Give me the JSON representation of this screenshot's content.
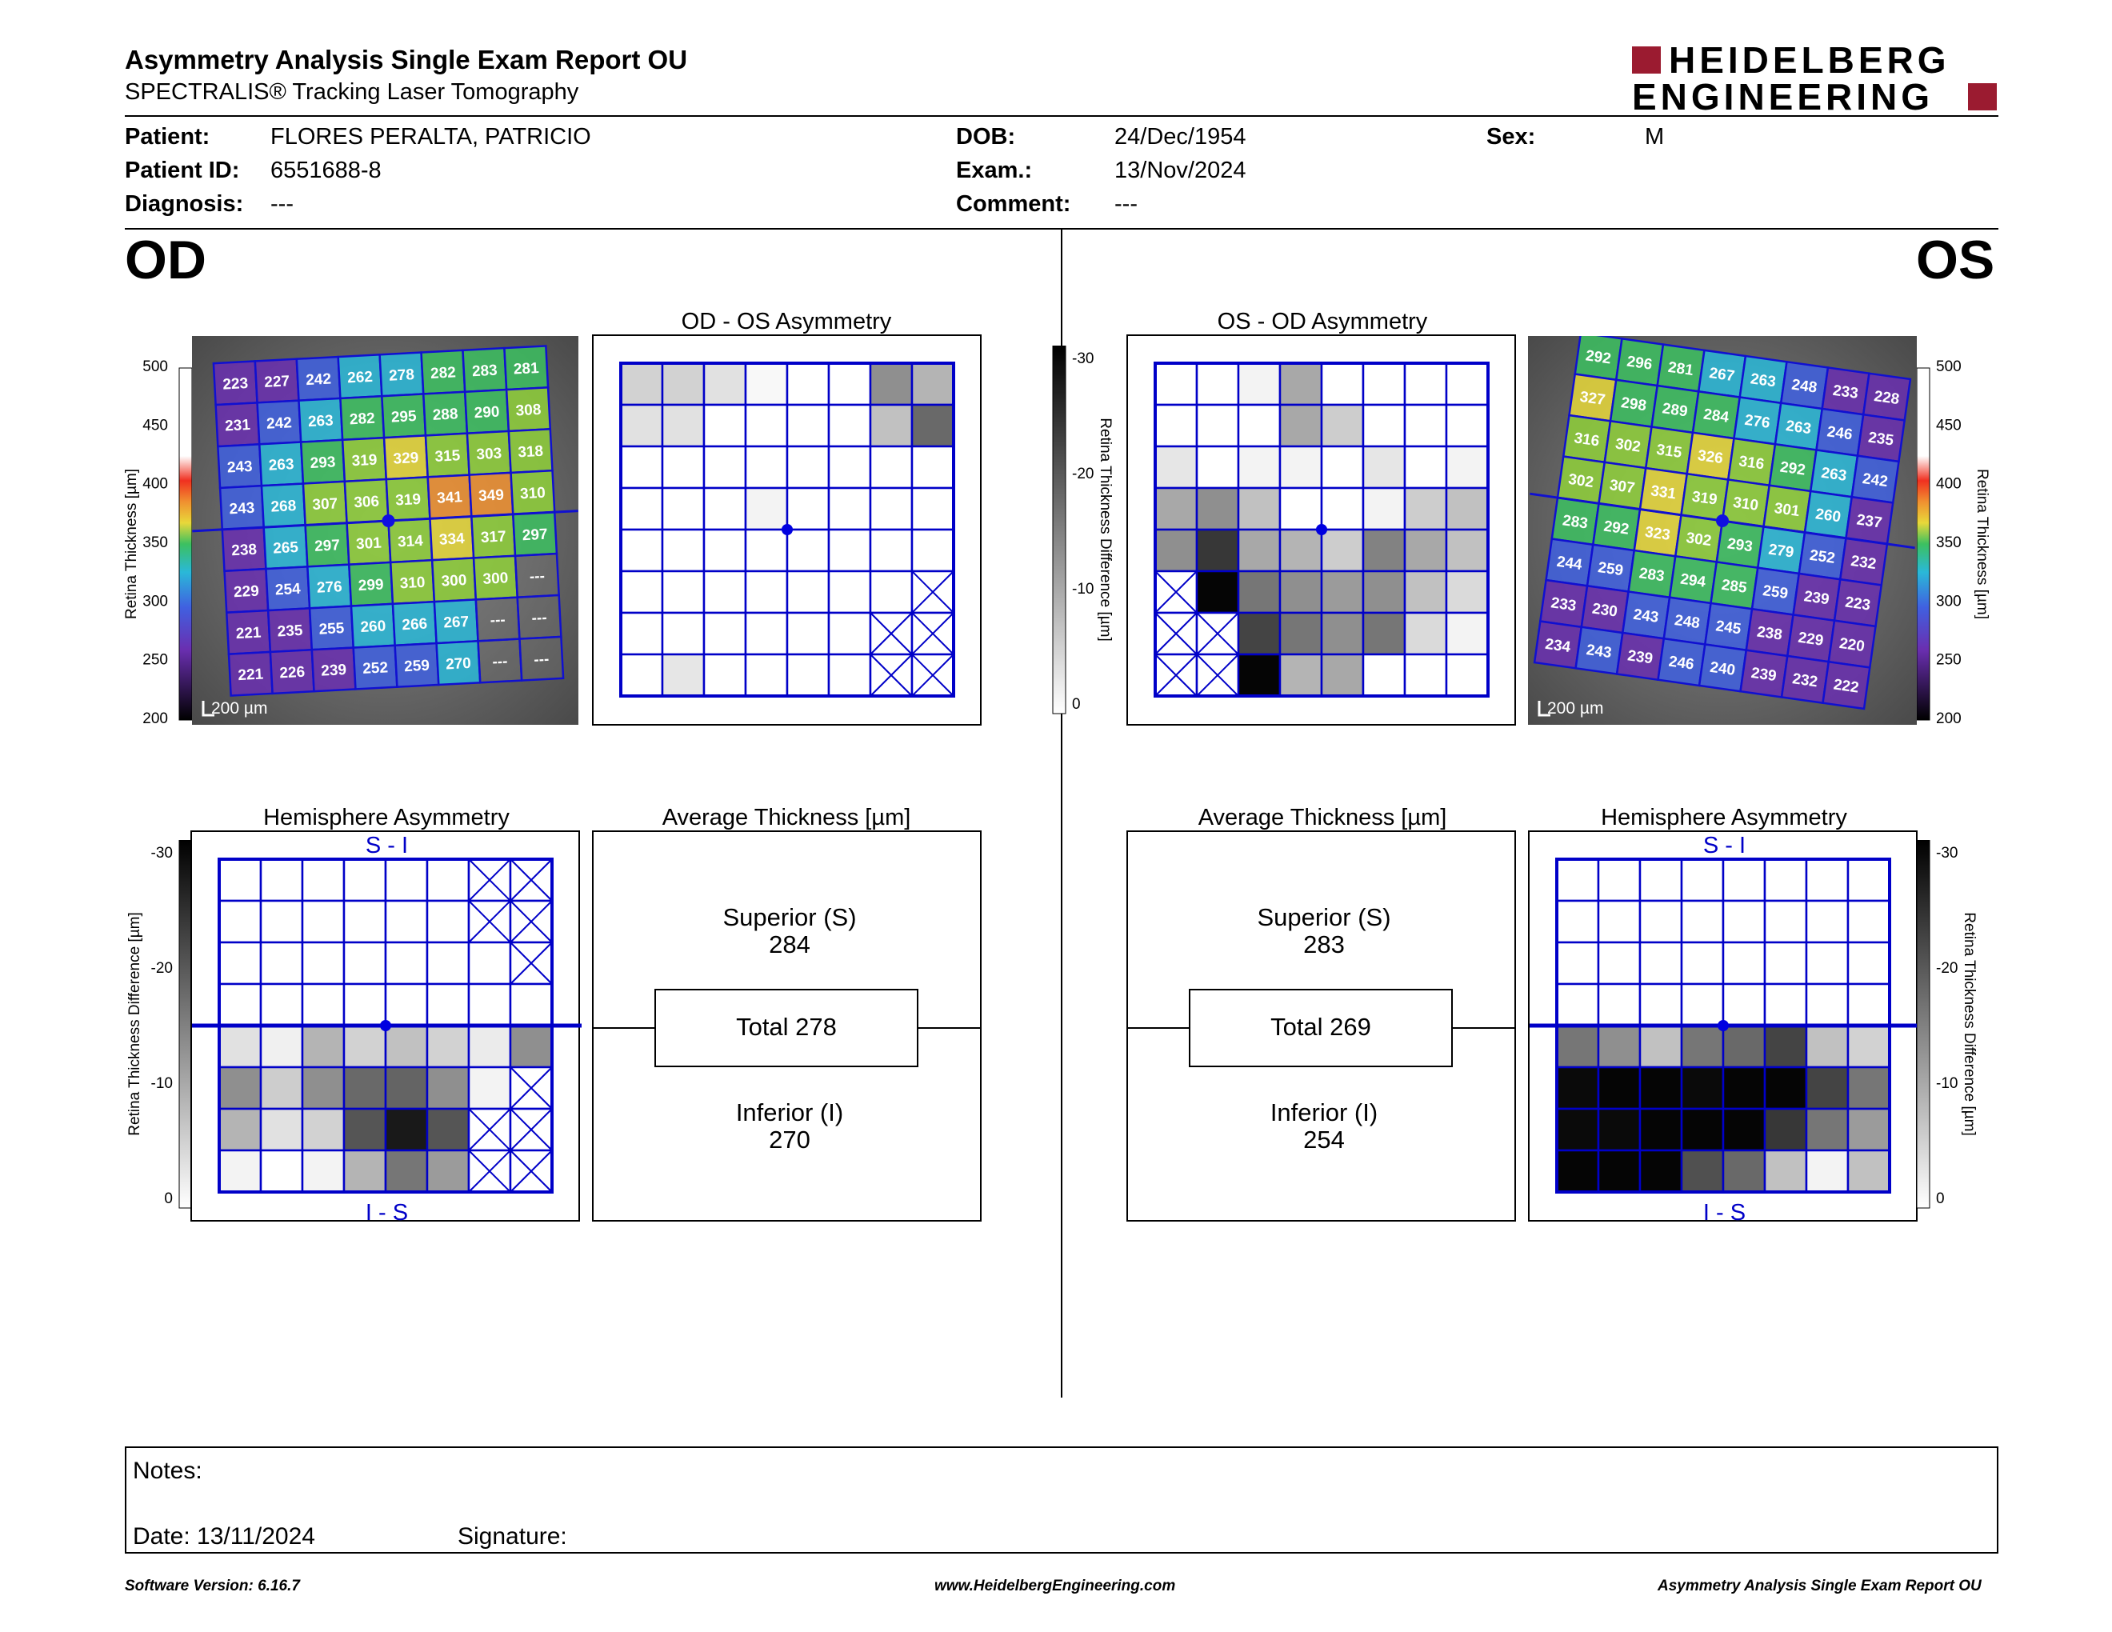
{
  "header": {
    "title": "Asymmetry Analysis Single Exam Report OU",
    "subtitle": "SPECTRALIS® Tracking Laser Tomography",
    "logo_line1": "HEIDELBERG",
    "logo_line2": "ENGINEERING",
    "brand_color": "#9b1b30"
  },
  "patient": {
    "patient_label": "Patient:",
    "patient_value": "FLORES PERALTA, PATRICIO",
    "id_label": "Patient ID:",
    "id_value": "6551688-8",
    "diagnosis_label": "Diagnosis:",
    "diagnosis_value": "---",
    "dob_label": "DOB:",
    "dob_value": "24/Dec/1954",
    "exam_label": "Exam.:",
    "exam_value": "13/Nov/2024",
    "comment_label": "Comment:",
    "comment_value": "---",
    "sex_label": "Sex:",
    "sex_value": "M"
  },
  "od": {
    "eye_label": "OD",
    "asym_title": "OD - OS Asymmetry",
    "hemi_title": "Hemisphere Asymmetry",
    "avg_title": "Average Thickness [µm]",
    "hemi_top": "S - I",
    "hemi_bottom": "I - S",
    "superior_label": "Superior (S)",
    "superior_value": "284",
    "total_label": "Total 278",
    "inferior_label": "Inferior (I)",
    "inferior_value": "270",
    "scale_bar": "200 µm",
    "thickness_grid": [
      [
        "223",
        "227",
        "242",
        "262",
        "278",
        "282",
        "283",
        "281"
      ],
      [
        "231",
        "242",
        "263",
        "282",
        "295",
        "288",
        "290",
        "308"
      ],
      [
        "243",
        "263",
        "293",
        "319",
        "329",
        "315",
        "303",
        "318"
      ],
      [
        "243",
        "268",
        "307",
        "306",
        "319",
        "341",
        "349",
        "310"
      ],
      [
        "238",
        "265",
        "297",
        "301",
        "314",
        "334",
        "317",
        "297"
      ],
      [
        "229",
        "254",
        "276",
        "299",
        "310",
        "300",
        "300",
        "---"
      ],
      [
        "221",
        "235",
        "255",
        "260",
        "266",
        "267",
        "---",
        "---"
      ],
      [
        "221",
        "226",
        "239",
        "252",
        "259",
        "270",
        "---",
        "---"
      ]
    ],
    "asym_grid": [
      [
        18,
        18,
        12,
        3,
        0,
        0,
        45,
        30
      ],
      [
        12,
        12,
        0,
        0,
        0,
        0,
        25,
        60
      ],
      [
        0,
        0,
        0,
        0,
        0,
        0,
        0,
        0
      ],
      [
        0,
        0,
        0,
        5,
        0,
        0,
        0,
        0
      ],
      [
        0,
        0,
        0,
        0,
        0,
        0,
        0,
        0
      ],
      [
        0,
        0,
        0,
        0,
        0,
        0,
        0,
        -1
      ],
      [
        0,
        0,
        0,
        0,
        0,
        0,
        -1,
        -1
      ],
      [
        0,
        10,
        0,
        0,
        0,
        0,
        -1,
        -1
      ]
    ],
    "hemi_grid": [
      [
        0,
        0,
        0,
        0,
        0,
        0,
        -1,
        -1
      ],
      [
        0,
        0,
        0,
        0,
        0,
        0,
        -1,
        -1
      ],
      [
        0,
        0,
        0,
        0,
        0,
        0,
        0,
        -1
      ],
      [
        0,
        0,
        0,
        0,
        0,
        0,
        0,
        0
      ],
      [
        12,
        6,
        30,
        18,
        25,
        18,
        8,
        45
      ],
      [
        45,
        20,
        45,
        60,
        62,
        45,
        5,
        -1
      ],
      [
        30,
        12,
        18,
        68,
        92,
        68,
        -1,
        -1
      ],
      [
        5,
        0,
        5,
        30,
        55,
        40,
        -1,
        -1
      ]
    ]
  },
  "os": {
    "eye_label": "OS",
    "asym_title": "OS - OD Asymmetry",
    "hemi_title": "Hemisphere Asymmetry",
    "avg_title": "Average Thickness [µm]",
    "hemi_top": "S - I",
    "hemi_bottom": "I - S",
    "superior_label": "Superior (S)",
    "superior_value": "283",
    "total_label": "Total 269",
    "inferior_label": "Inferior (I)",
    "inferior_value": "254",
    "scale_bar": "200 µm",
    "thickness_grid": [
      [
        "292",
        "296",
        "281",
        "267",
        "263",
        "248",
        "233",
        "228"
      ],
      [
        "327",
        "298",
        "289",
        "284",
        "276",
        "263",
        "246",
        "235"
      ],
      [
        "316",
        "302",
        "315",
        "326",
        "316",
        "292",
        "263",
        "242"
      ],
      [
        "302",
        "307",
        "331",
        "319",
        "310",
        "301",
        "260",
        "237"
      ],
      [
        "283",
        "292",
        "323",
        "302",
        "293",
        "279",
        "252",
        "232"
      ],
      [
        "244",
        "259",
        "283",
        "294",
        "285",
        "259",
        "239",
        "223"
      ],
      [
        "233",
        "230",
        "243",
        "248",
        "245",
        "238",
        "229",
        "220"
      ],
      [
        "234",
        "243",
        "239",
        "246",
        "240",
        "239",
        "232",
        "222"
      ]
    ],
    "asym_grid": [
      [
        0,
        0,
        5,
        35,
        0,
        0,
        0,
        0
      ],
      [
        0,
        0,
        0,
        35,
        20,
        0,
        0,
        0
      ],
      [
        10,
        0,
        5,
        5,
        0,
        10,
        0,
        5
      ],
      [
        35,
        45,
        25,
        0,
        0,
        5,
        20,
        25
      ],
      [
        45,
        80,
        35,
        30,
        20,
        50,
        35,
        25
      ],
      [
        -1,
        100,
        55,
        45,
        40,
        45,
        25,
        15
      ],
      [
        -1,
        -1,
        75,
        55,
        45,
        55,
        15,
        5
      ],
      [
        -1,
        -1,
        100,
        30,
        35,
        0,
        0,
        0
      ]
    ],
    "hemi_grid": [
      [
        0,
        0,
        0,
        0,
        0,
        0,
        0,
        0
      ],
      [
        0,
        0,
        0,
        0,
        0,
        0,
        0,
        0
      ],
      [
        0,
        0,
        0,
        0,
        0,
        0,
        0,
        0
      ],
      [
        0,
        0,
        0,
        0,
        0,
        0,
        0,
        0
      ],
      [
        55,
        45,
        25,
        55,
        60,
        75,
        25,
        18
      ],
      [
        98,
        100,
        100,
        98,
        100,
        100,
        75,
        55
      ],
      [
        98,
        98,
        100,
        100,
        100,
        80,
        55,
        40
      ],
      [
        100,
        100,
        100,
        70,
        60,
        25,
        5,
        25
      ]
    ]
  },
  "scales": {
    "thickness_label": "Retina Thickness [µm]",
    "thickness_ticks": [
      "500",
      "450",
      "400",
      "350",
      "300",
      "250",
      "200"
    ],
    "diff_label": "Retina Thickness Difference [µm]",
    "diff_ticks": [
      "-30",
      "-20",
      "-10",
      "0"
    ]
  },
  "notes": {
    "notes_label": "Notes:",
    "date_label": "Date: 13/11/2024",
    "signature_label": "Signature:"
  },
  "footer": {
    "software": "Software Version: 6.16.7",
    "website": "www.HeidelbergEngineering.com",
    "report_name": "Asymmetry Analysis Single Exam Report OU"
  }
}
